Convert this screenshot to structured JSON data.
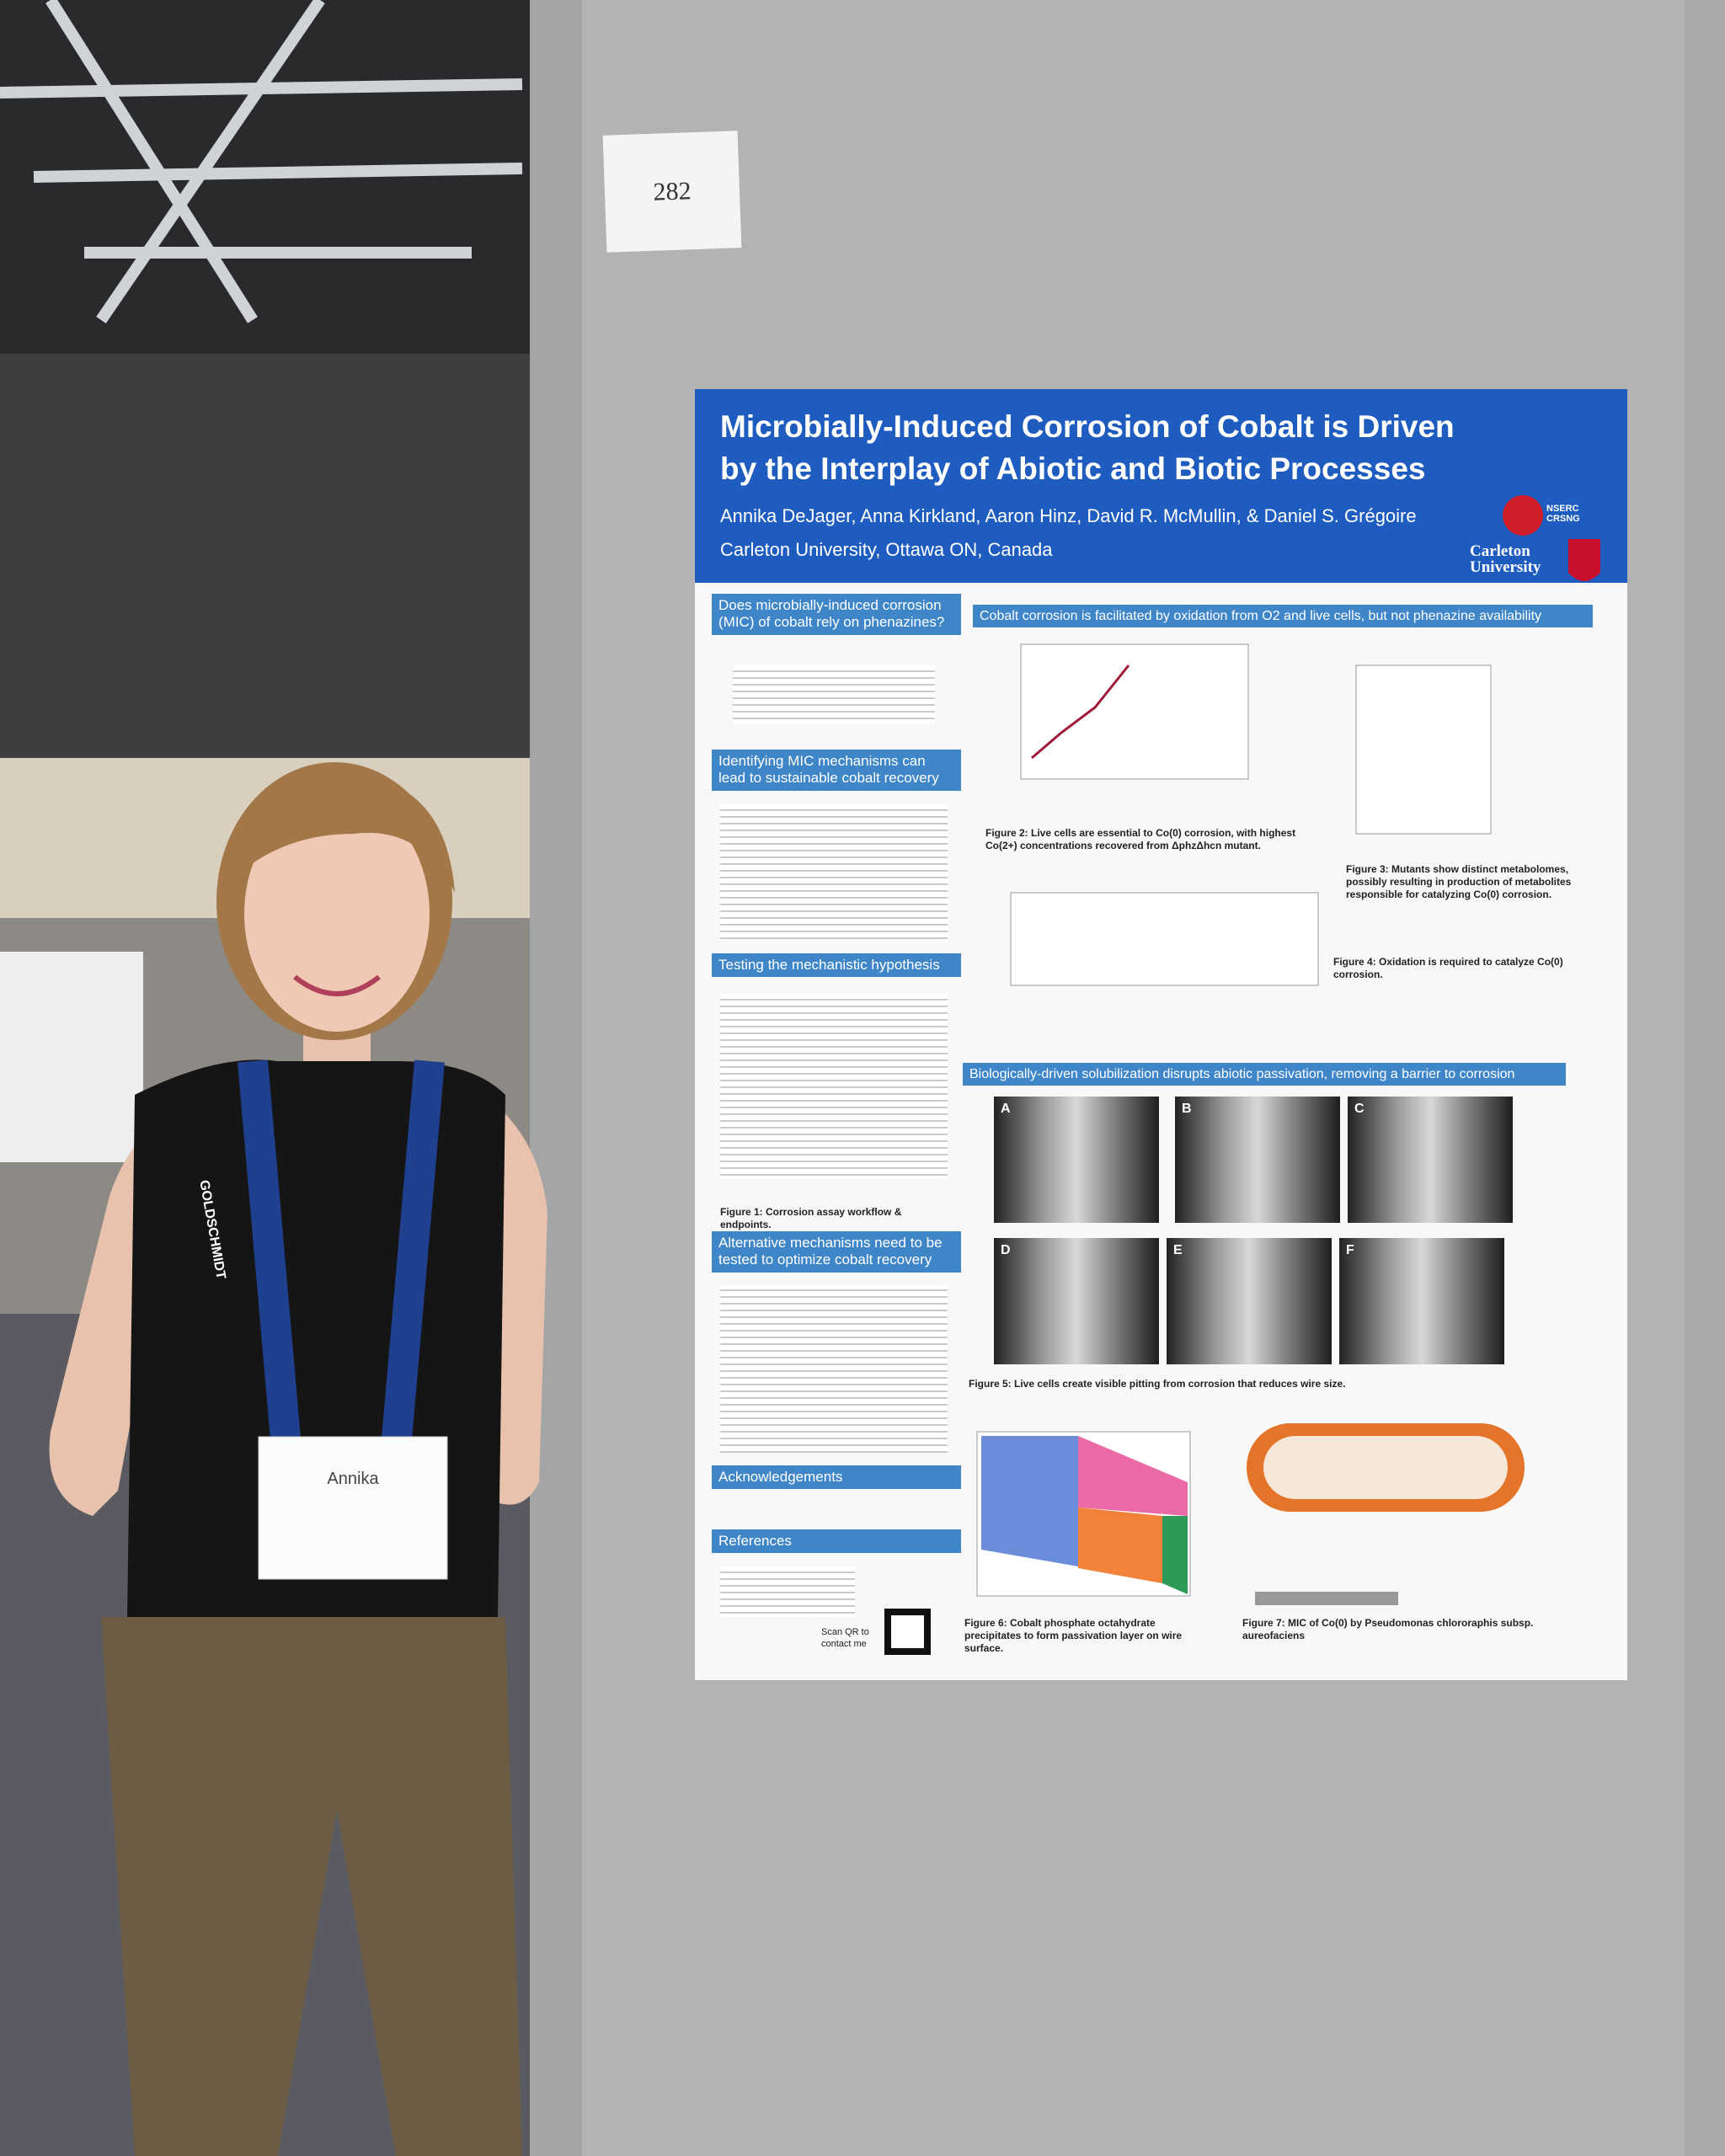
{
  "sign": {
    "number": "282"
  },
  "poster": {
    "title": "Microbially-Induced Corrosion of Cobalt is Driven by the Interplay of Abiotic and Biotic Processes",
    "authors": "Annika DeJager, Anna Kirkland, Aaron Hinz, David R. McMullin, & Daniel S. Grégoire",
    "affiliation": "Carleton University, Ottawa ON, Canada",
    "logos": [
      "NSERC CRSNG",
      "Carleton University"
    ],
    "sections": [
      "Does microbially-induced corrosion (MIC) of cobalt rely on phenazines?",
      "Identifying MIC mechanisms can lead to sustainable cobalt recovery",
      "Testing the mechanistic hypothesis",
      "Alternative mechanisms need to be tested to optimize cobalt recovery",
      "Acknowledgements",
      "References",
      "Cobalt corrosion is facilitated by oxidation from O2 and live cells, but not phenazine availability",
      "Biologically-driven solubilization disrupts abiotic passivation, removing a barrier to corrosion"
    ],
    "captions": [
      "Figure 1: Corrosion assay workflow & endpoints.",
      "Figure 2: Live cells are essential to Co(0) corrosion, with highest Co(2+) concentrations recovered from ΔphzΔhcn mutant.",
      "Figure 3: Mutants show distinct metabolomes, possibly resulting in production of metabolites responsible for catalyzing Co(0) corrosion.",
      "Figure 4: Oxidation is required to catalyze Co(0) corrosion.",
      "Figure 5: Live cells create visible pitting from corrosion that reduces wire size.",
      "Figure 6: Cobalt phosphate octahydrate precipitates to form passivation layer on wire surface.",
      "Figure 7: MIC of Co(0) by Pseudomonas chlororaphis subsp. aureofaciens"
    ],
    "panel_letters": [
      "A",
      "B",
      "C",
      "D",
      "E",
      "F"
    ],
    "scan": "Scan QR to contact me"
  },
  "badge": {
    "name": "Annika",
    "lanyard": "GOLDSCHMIDT"
  }
}
